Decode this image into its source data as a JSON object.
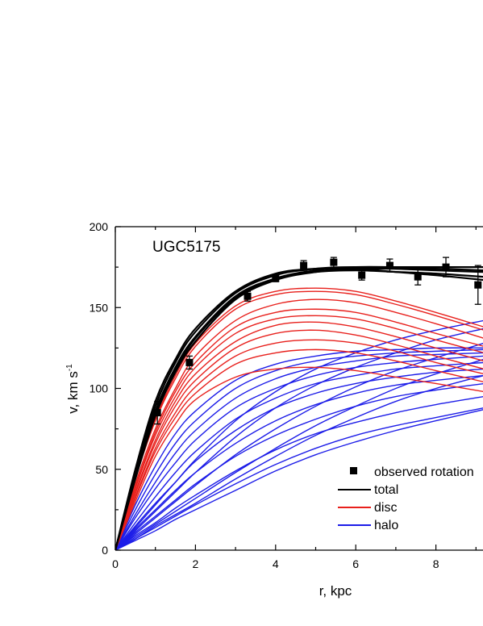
{
  "chart_data": {
    "type": "line",
    "panel_label": "UGC5175",
    "xlabel": "r, kpc",
    "ylabel": "v, km s",
    "ylabel_sup": "-1",
    "xlim": [
      0,
      9.2
    ],
    "ylim": [
      0,
      200
    ],
    "x_ticks": [
      "0",
      "2",
      "4",
      "6",
      "8"
    ],
    "y_ticks": [
      "0",
      "50",
      "100",
      "150",
      "200"
    ],
    "grid": false,
    "legend_position": "bottom-right",
    "colors": {
      "total": "#000000",
      "disc": "#e8201c",
      "halo": "#1c1ce8"
    },
    "legend": [
      {
        "label": "observed rotation",
        "kind": "marker",
        "color": "#000000"
      },
      {
        "label": "total",
        "kind": "line",
        "color": "#000000"
      },
      {
        "label": "disc",
        "kind": "line",
        "color": "#e8201c"
      },
      {
        "label": "halo",
        "kind": "line",
        "color": "#1c1ce8"
      }
    ],
    "observed_rotation": [
      {
        "x": 1.05,
        "y": 85,
        "err": 7
      },
      {
        "x": 1.85,
        "y": 116,
        "err": 4
      },
      {
        "x": 3.3,
        "y": 157,
        "err": 3
      },
      {
        "x": 4.0,
        "y": 168,
        "err": 2
      },
      {
        "x": 4.7,
        "y": 176,
        "err": 3
      },
      {
        "x": 5.45,
        "y": 178,
        "err": 3
      },
      {
        "x": 6.15,
        "y": 170,
        "err": 3
      },
      {
        "x": 6.85,
        "y": 176,
        "err": 4
      },
      {
        "x": 7.55,
        "y": 169,
        "err": 5
      },
      {
        "x": 8.25,
        "y": 175,
        "err": 6
      },
      {
        "x": 9.05,
        "y": 164,
        "err": 12
      }
    ],
    "curve_x": [
      0,
      0.5,
      1,
      1.5,
      2,
      3,
      4,
      5,
      6,
      7,
      8,
      9.2
    ],
    "total_curves": [
      [
        0,
        46,
        86,
        113,
        132,
        157,
        168,
        172,
        173,
        172,
        171,
        169
      ],
      [
        0,
        48,
        89,
        116,
        135,
        159,
        170,
        174,
        175,
        174,
        173,
        172
      ],
      [
        0,
        44,
        83,
        110,
        129,
        155,
        167,
        172,
        174,
        174,
        174,
        173
      ],
      [
        0,
        50,
        92,
        118,
        137,
        160,
        171,
        174,
        174,
        172,
        170,
        167
      ],
      [
        0,
        45,
        84,
        111,
        131,
        156,
        168,
        173,
        175,
        175,
        175,
        175
      ]
    ],
    "disc_curves": [
      [
        0,
        35,
        66,
        89,
        105,
        125,
        134,
        136,
        133,
        127,
        120,
        112
      ],
      [
        0,
        30,
        58,
        78,
        93,
        107,
        112,
        113,
        111,
        107,
        103,
        98
      ],
      [
        0,
        41,
        75,
        100,
        120,
        142,
        152,
        155,
        153,
        147,
        140,
        131
      ],
      [
        0,
        38,
        71,
        95,
        113,
        134,
        143,
        145,
        143,
        137,
        130,
        122
      ],
      [
        0,
        44,
        80,
        106,
        126,
        149,
        158,
        160,
        158,
        152,
        145,
        136
      ],
      [
        0,
        36,
        68,
        92,
        109,
        129,
        139,
        141,
        138,
        132,
        125,
        117
      ],
      [
        0,
        33,
        63,
        85,
        101,
        120,
        128,
        130,
        128,
        123,
        116,
        109
      ],
      [
        0,
        45,
        81,
        108,
        128,
        151,
        160,
        162,
        160,
        154,
        147,
        138
      ],
      [
        0,
        39,
        73,
        98,
        116,
        138,
        147,
        149,
        147,
        141,
        134,
        126
      ],
      [
        0,
        32,
        61,
        82,
        97,
        115,
        122,
        124,
        122,
        117,
        111,
        104
      ]
    ],
    "halo_curves": [
      [
        0,
        6,
        12,
        19,
        25,
        37,
        49,
        59,
        67,
        74,
        80,
        87
      ],
      [
        0,
        7,
        14,
        21,
        28,
        41,
        53,
        63,
        71,
        77,
        82,
        88
      ],
      [
        0,
        9,
        17,
        26,
        34,
        49,
        62,
        72,
        79,
        85,
        90,
        95
      ],
      [
        0,
        11,
        21,
        31,
        41,
        58,
        71,
        81,
        89,
        95,
        99,
        103
      ],
      [
        0,
        13,
        25,
        37,
        48,
        66,
        80,
        90,
        97,
        102,
        105,
        108
      ],
      [
        0,
        15,
        29,
        42,
        55,
        74,
        88,
        97,
        103,
        107,
        110,
        112
      ],
      [
        0,
        17,
        33,
        48,
        61,
        81,
        94,
        103,
        108,
        112,
        114,
        116
      ],
      [
        0,
        20,
        38,
        54,
        68,
        88,
        100,
        108,
        113,
        116,
        118,
        120
      ],
      [
        0,
        22,
        42,
        60,
        74,
        94,
        106,
        113,
        117,
        120,
        121,
        122
      ],
      [
        0,
        25,
        47,
        66,
        80,
        100,
        111,
        117,
        120,
        122,
        123,
        124
      ],
      [
        0,
        28,
        52,
        72,
        86,
        105,
        115,
        120,
        123,
        124,
        125,
        125
      ],
      [
        0,
        8,
        16,
        24,
        32,
        48,
        63,
        77,
        89,
        100,
        109,
        118
      ],
      [
        0,
        10,
        20,
        30,
        40,
        59,
        75,
        89,
        101,
        111,
        119,
        128
      ],
      [
        0,
        12,
        24,
        36,
        48,
        70,
        88,
        102,
        113,
        122,
        130,
        137
      ],
      [
        0,
        14,
        28,
        42,
        56,
        80,
        98,
        112,
        122,
        130,
        136,
        142
      ],
      [
        0,
        7,
        15,
        22,
        29,
        44,
        58,
        71,
        82,
        92,
        100,
        108
      ]
    ]
  }
}
